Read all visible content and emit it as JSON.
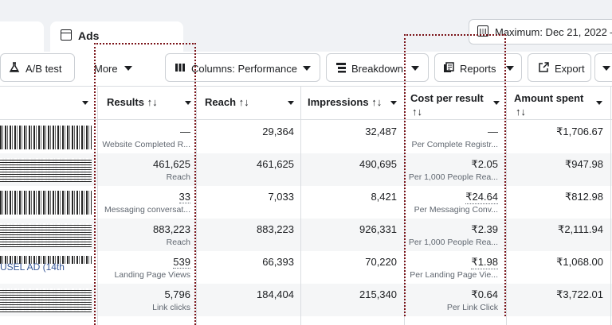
{
  "tabs": {
    "ads_label": "Ads"
  },
  "date_range": {
    "label": "Maximum: Dec 21, 2022 –"
  },
  "toolbar": {
    "ab_test_label": "A/B test",
    "more_label": "More",
    "columns_label": "Columns: Performance",
    "breakdown_label": "Breakdown",
    "reports_label": "Reports",
    "export_label": "Export"
  },
  "table": {
    "headers": {
      "results": "Results ↑↓",
      "reach": "Reach ↑↓",
      "impressions": "Impressions ↑↓",
      "cost_per_result_line1": "Cost per result",
      "cost_per_result_line2": "↑↓",
      "amount_spent_line1": "Amount spent",
      "amount_spent_line2": "↑↓"
    },
    "rows": [
      {
        "name": "",
        "results": "—",
        "results_type": "Website Completed R...",
        "reach": "29,364",
        "impressions": "32,487",
        "cost": "—",
        "cost_type": "Per Complete Registr...",
        "spent": "₹1,706.67"
      },
      {
        "name": "",
        "results": "461,625",
        "results_type": "Reach",
        "reach": "461,625",
        "impressions": "490,695",
        "cost": "₹2.05",
        "cost_type": "Per 1,000 People Rea...",
        "spent": "₹947.98"
      },
      {
        "name": "",
        "results": "33",
        "results_type": "Messaging conversat...",
        "reach": "7,033",
        "impressions": "8,421",
        "cost": "₹24.64",
        "cost_type": "Per Messaging Conv...",
        "spent": "₹812.98"
      },
      {
        "name": "",
        "results": "883,223",
        "results_type": "Reach",
        "reach": "883,223",
        "impressions": "926,331",
        "cost": "₹2.39",
        "cost_type": "Per 1,000 People Rea...",
        "spent": "₹2,111.94"
      },
      {
        "name": "USEL AD (14th",
        "results": "539",
        "results_type": "Landing Page Views",
        "reach": "66,393",
        "impressions": "70,220",
        "cost": "₹1.98",
        "cost_type": "Per Landing Page Vie...",
        "spent": "₹1,068.00"
      },
      {
        "name": "",
        "results": "5,796",
        "results_type": "Link clicks",
        "reach": "184,404",
        "impressions": "215,340",
        "cost": "₹0.64",
        "cost_type": "Per Link Click",
        "spent": "₹3,722.01"
      }
    ]
  },
  "colors": {
    "highlight_box": "#7a1318",
    "link": "#385898",
    "border": "#dadde1"
  }
}
